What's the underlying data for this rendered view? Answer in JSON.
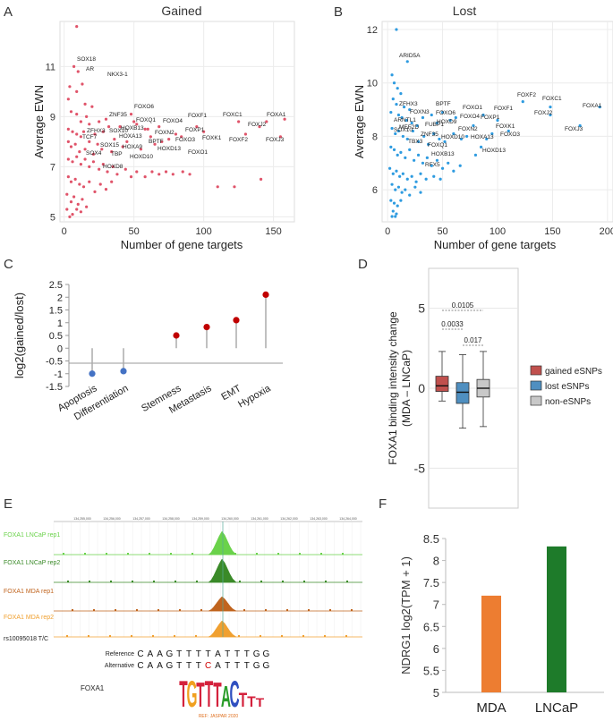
{
  "panels": {
    "A": "A",
    "B": "B",
    "C": "C",
    "D": "D",
    "E": "E",
    "F": "F"
  },
  "colors": {
    "gained": "#e0546a",
    "lost": "#2e9be0",
    "red": "#c00000",
    "blue": "#4472c4",
    "box_gained": "#c0504d",
    "box_lost": "#4f8fc0",
    "box_non": "#c8c8c8",
    "orange": "#ed7d31",
    "green": "#1e7b2a",
    "track_light_green": "#6ad24a",
    "track_dark_green": "#3a8a28",
    "track_dark_orange": "#c0641e",
    "track_orange": "#f0a030"
  },
  "chart_data": [
    {
      "panel": "A",
      "type": "scatter",
      "title": "Gained",
      "xlabel": "Number of gene targets",
      "ylabel": "Average EWN",
      "xlim": [
        -3,
        165
      ],
      "ylim": [
        4.8,
        12.8
      ],
      "xticks": [
        0,
        50,
        100,
        150
      ],
      "yticks": [
        5,
        7,
        9,
        11
      ],
      "points": [
        [
          9,
          12.6
        ],
        [
          7,
          11
        ],
        [
          10,
          10.8
        ],
        [
          4,
          10.2
        ],
        [
          13,
          10.3
        ],
        [
          9,
          10
        ],
        [
          3,
          9.7
        ],
        [
          15,
          9.5
        ],
        [
          20,
          9.4
        ],
        [
          5,
          9.2
        ],
        [
          9,
          9.1
        ],
        [
          16,
          9.0
        ],
        [
          12,
          8.8
        ],
        [
          18,
          8.7
        ],
        [
          25,
          8.8
        ],
        [
          30,
          8.9
        ],
        [
          32,
          8.6
        ],
        [
          3,
          8.5
        ],
        [
          6,
          8.4
        ],
        [
          9,
          8.3
        ],
        [
          12,
          8.2
        ],
        [
          14,
          8.4
        ],
        [
          22,
          8.3
        ],
        [
          28,
          8.4
        ],
        [
          40,
          8.6
        ],
        [
          48,
          9.1
        ],
        [
          52,
          8.7
        ],
        [
          60,
          8.5
        ],
        [
          3,
          8.0
        ],
        [
          5,
          7.8
        ],
        [
          8,
          7.9
        ],
        [
          11,
          7.6
        ],
        [
          15,
          7.7
        ],
        [
          18,
          8.0
        ],
        [
          21,
          7.5
        ],
        [
          24,
          7.9
        ],
        [
          27,
          7.7
        ],
        [
          34,
          7.6
        ],
        [
          36,
          8.1
        ],
        [
          42,
          7.8
        ],
        [
          45,
          8.0
        ],
        [
          55,
          7.7
        ],
        [
          62,
          8.2
        ],
        [
          65,
          7.9
        ],
        [
          70,
          8.0
        ],
        [
          3,
          7.3
        ],
        [
          6,
          7.2
        ],
        [
          9,
          7.4
        ],
        [
          12,
          7.1
        ],
        [
          15,
          7.3
        ],
        [
          18,
          7.0
        ],
        [
          21,
          7.2
        ],
        [
          25,
          6.9
        ],
        [
          28,
          7.1
        ],
        [
          31,
          6.8
        ],
        [
          35,
          7.0
        ],
        [
          38,
          6.7
        ],
        [
          44,
          6.9
        ],
        [
          48,
          6.6
        ],
        [
          52,
          6.8
        ],
        [
          58,
          6.6
        ],
        [
          63,
          6.8
        ],
        [
          68,
          6.7
        ],
        [
          73,
          6.8
        ],
        [
          78,
          6.7
        ],
        [
          85,
          6.8
        ],
        [
          90,
          6.7
        ],
        [
          3,
          6.6
        ],
        [
          5,
          6.4
        ],
        [
          8,
          6.5
        ],
        [
          11,
          6.3
        ],
        [
          14,
          6.2
        ],
        [
          18,
          6.4
        ],
        [
          22,
          6.0
        ],
        [
          26,
          6.3
        ],
        [
          30,
          6.1
        ],
        [
          34,
          6.4
        ],
        [
          2,
          5.9
        ],
        [
          5,
          5.6
        ],
        [
          7,
          5.8
        ],
        [
          10,
          5.5
        ],
        [
          13,
          5.7
        ],
        [
          16,
          5.4
        ],
        [
          2,
          5.3
        ],
        [
          6,
          5.1
        ],
        [
          9,
          5.3
        ],
        [
          4,
          5.0
        ],
        [
          12,
          5.2
        ],
        [
          80,
          8.3
        ],
        [
          95,
          8.6
        ],
        [
          100,
          8.4
        ],
        [
          125,
          8.8
        ],
        [
          145,
          8.8
        ],
        [
          158,
          8.9
        ],
        [
          140,
          8.6
        ],
        [
          155,
          8.2
        ],
        [
          130,
          8.3
        ],
        [
          122,
          6.2
        ],
        [
          141,
          6.5
        ],
        [
          110,
          6.2
        ],
        [
          50,
          8.8
        ],
        [
          58,
          8.5
        ],
        [
          68,
          8.6
        ],
        [
          75,
          8.1
        ],
        [
          84,
          8.2
        ]
      ],
      "labels": [
        "SOX18",
        "AR",
        "NKX3-1",
        "FOXO6",
        "ZNF35",
        "FOXQ1",
        "HOXB13",
        "FOXO4",
        "FOXF1",
        "FOXC1",
        "FOXA1",
        "FOXJ2",
        "ZFHX3",
        "SOX10",
        "HOXA13",
        "FOXN2",
        "FOXP1",
        "TCF7",
        "SOX15",
        "HOXA9",
        "BPTF",
        "FOXO3",
        "FOXK1",
        "FOXF2",
        "FOXJ3",
        "SOX4",
        "TBP",
        "HOXD13",
        "HOXD10",
        "FOXO1",
        "HOXD8"
      ]
    },
    {
      "panel": "B",
      "type": "scatter",
      "title": "Lost",
      "xlabel": "Number of gene targets",
      "ylabel": "Average EWN",
      "xlim": [
        -5,
        205
      ],
      "ylim": [
        4.8,
        12.3
      ],
      "xticks": [
        0,
        50,
        100,
        150,
        200
      ],
      "yticks": [
        6,
        8,
        10,
        12
      ],
      "points": [
        [
          8,
          12
        ],
        [
          18,
          10.8
        ],
        [
          4,
          10.3
        ],
        [
          6,
          10.0
        ],
        [
          9,
          9.8
        ],
        [
          12,
          9.6
        ],
        [
          5,
          9.4
        ],
        [
          8,
          9.2
        ],
        [
          15,
          9.1
        ],
        [
          20,
          9.0
        ],
        [
          3,
          8.9
        ],
        [
          10,
          8.8
        ],
        [
          13,
          8.7
        ],
        [
          17,
          8.6
        ],
        [
          22,
          8.5
        ],
        [
          27,
          8.4
        ],
        [
          32,
          8.7
        ],
        [
          40,
          8.8
        ],
        [
          45,
          8.5
        ],
        [
          50,
          8.9
        ],
        [
          57,
          8.6
        ],
        [
          62,
          8.7
        ],
        [
          4,
          8.3
        ],
        [
          7,
          8.1
        ],
        [
          10,
          8.2
        ],
        [
          14,
          8.0
        ],
        [
          18,
          7.9
        ],
        [
          23,
          8.2
        ],
        [
          28,
          7.8
        ],
        [
          33,
          8.0
        ],
        [
          37,
          7.7
        ],
        [
          42,
          8.1
        ],
        [
          47,
          7.9
        ],
        [
          52,
          7.8
        ],
        [
          60,
          8.1
        ],
        [
          67,
          7.9
        ],
        [
          72,
          8.0
        ],
        [
          3,
          7.6
        ],
        [
          6,
          7.5
        ],
        [
          9,
          7.3
        ],
        [
          12,
          7.4
        ],
        [
          16,
          7.2
        ],
        [
          20,
          7.5
        ],
        [
          24,
          7.1
        ],
        [
          28,
          7.3
        ],
        [
          32,
          7.0
        ],
        [
          36,
          7.2
        ],
        [
          40,
          6.9
        ],
        [
          45,
          7.1
        ],
        [
          50,
          6.8
        ],
        [
          55,
          7.0
        ],
        [
          60,
          6.7
        ],
        [
          66,
          6.9
        ],
        [
          2,
          6.8
        ],
        [
          5,
          6.6
        ],
        [
          8,
          6.7
        ],
        [
          11,
          6.5
        ],
        [
          14,
          6.6
        ],
        [
          18,
          6.4
        ],
        [
          22,
          6.5
        ],
        [
          26,
          6.3
        ],
        [
          30,
          6.6
        ],
        [
          35,
          6.4
        ],
        [
          42,
          6.5
        ],
        [
          48,
          6.4
        ],
        [
          4,
          6.2
        ],
        [
          7,
          6.0
        ],
        [
          10,
          6.1
        ],
        [
          13,
          5.9
        ],
        [
          16,
          6.0
        ],
        [
          20,
          5.8
        ],
        [
          25,
          6.1
        ],
        [
          30,
          5.9
        ],
        [
          3,
          5.6
        ],
        [
          6,
          5.5
        ],
        [
          9,
          5.4
        ],
        [
          12,
          5.6
        ],
        [
          5,
          5.2
        ],
        [
          8,
          5.1
        ],
        [
          4,
          5.0
        ],
        [
          7,
          5.0
        ],
        [
          100,
          8.6
        ],
        [
          110,
          8.2
        ],
        [
          123,
          9.3
        ],
        [
          148,
          9.1
        ],
        [
          193,
          9.1
        ],
        [
          148,
          8.8
        ],
        [
          175,
          8.4
        ],
        [
          95,
          8.1
        ],
        [
          90,
          7.9
        ],
        [
          85,
          7.6
        ],
        [
          80,
          7.3
        ],
        [
          78,
          8.4
        ],
        [
          87,
          8.8
        ]
      ],
      "labels": [
        "ARID5A",
        "ZFHX3",
        "FOXN3",
        "BPTF",
        "FOXO1",
        "FOXF2",
        "FOXC1",
        "FOXA1",
        "FOXO6",
        "FOXO4",
        "FOXP1",
        "FOXF1",
        "FOXJ2",
        "ARNTL1",
        "FUBP1",
        "HOXD9",
        "FOXK1",
        "SOX10",
        "MEF2D",
        "ZNF35",
        "FOXN2",
        "FOXJ3",
        "HOXD10",
        "FOXO3",
        "HOXA13",
        "TBX3",
        "FOXQ1",
        "HOXD13",
        "HOXB13",
        "RFX5"
      ]
    },
    {
      "panel": "C",
      "type": "lollipop",
      "ylabel": "log2(gained/lost)",
      "ylim": [
        -1.5,
        2.5
      ],
      "yticks": [
        "2.5",
        "2",
        "1.5",
        "1",
        "0.5",
        "0",
        "-0.5",
        "-1",
        "-1.5"
      ],
      "categories": [
        "Apoptosis",
        "Differentiation",
        "Stemness",
        "Metastasis",
        "EMT",
        "Hypoxia"
      ],
      "values": [
        -1.0,
        -0.9,
        0.5,
        0.83,
        1.1,
        2.1
      ]
    },
    {
      "panel": "D",
      "type": "box",
      "ylabel_line1": "FOXA1 binding intensity change",
      "ylabel_line2": "(MDA – LNCaP)",
      "ylim": [
        -7.5,
        7.5
      ],
      "yticks": [
        "5",
        "0",
        "-5"
      ],
      "series": [
        {
          "name": "gained eSNPs",
          "min": -0.8,
          "q1": -0.2,
          "median": 0.15,
          "q3": 0.75,
          "max": 2.3
        },
        {
          "name": "lost eSNPs",
          "min": -2.5,
          "q1": -0.95,
          "median": -0.25,
          "q3": 0.35,
          "max": 2.1
        },
        {
          "name": "non-eSNPs",
          "min": -2.4,
          "q1": -0.55,
          "median": 0.0,
          "q3": 0.55,
          "max": 2.3
        }
      ],
      "pvalues": [
        "0.0105",
        "0.0033",
        "0.017"
      ]
    },
    {
      "panel": "F",
      "type": "bar",
      "ylabel": "NDRG1 log2(TPM + 1)",
      "ylim": [
        5,
        8.5
      ],
      "yticks": [
        "8.5",
        "8",
        "7.5",
        "7",
        "6.5",
        "6",
        "5.5",
        "5"
      ],
      "categories": [
        "MDA",
        "LNCaP"
      ],
      "values": [
        7.2,
        8.32
      ]
    }
  ],
  "genome_browser": {
    "tracks": [
      "FOXA1 LNCaP rep1",
      "FOXA1 LNCaP rep2",
      "FOXA1 MDA rep1",
      "FOXA1 MDA rep2"
    ],
    "snp_label": "rs10095018 T/C",
    "reference_label": "Reference",
    "alternative_label": "Alternative",
    "reference_seq": [
      "C",
      "A",
      "A",
      "G",
      "T",
      "T",
      "T",
      "T",
      "A",
      "T",
      "T",
      "T",
      "G",
      "G"
    ],
    "alternative_seq": [
      "C",
      "A",
      "A",
      "G",
      "T",
      "T",
      "T",
      "C",
      "A",
      "T",
      "T",
      "T",
      "G",
      "G"
    ],
    "motif_label": "FOXA1",
    "motif_letters": [
      "T",
      "G",
      "T",
      "T",
      "T",
      "A",
      "C",
      "T",
      "T",
      "T"
    ],
    "motif_source": "REF: JASPAR 2020",
    "coords": [
      "134,255,000",
      "134,256,000",
      "134,257,000",
      "134,258,000",
      "134,259,000",
      "134,260,000",
      "134,261,000",
      "134,262,000",
      "134,263,000",
      "134,264,000"
    ]
  }
}
